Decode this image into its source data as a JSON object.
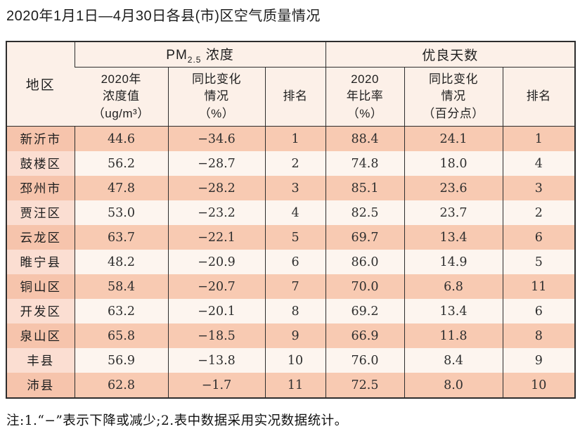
{
  "page": {
    "title": "2020年1月1日—4月30日各县(市)区空气质量情况",
    "footnote": "注:1.“−”表示下降或减少;2.表中数据采用实况数据统计。"
  },
  "colors": {
    "row_odd": "#f8cab2",
    "row_odd_region": "#f6c4ac",
    "row_even": "#fdf5ef",
    "row_even_region": "#fbded2",
    "header_bg": "#fcf0e8",
    "border": "#2d2d2d"
  },
  "table": {
    "header": {
      "region": "地区",
      "pm_group_prefix": "PM",
      "pm_group_sub": "2.5",
      "pm_group_suffix": " 浓度",
      "good_days_group": "优良天数",
      "col_pm_value": "2020年\n浓度值\n（ug/m³）",
      "col_pm_change": "同比变化\n情况\n（%）",
      "col_pm_rank": "排名",
      "col_days_ratio": "2020\n年比率\n（%）",
      "col_days_change": "同比变化\n情况\n（百分点）",
      "col_days_rank": "排名"
    },
    "rows": [
      {
        "region": "新沂市",
        "pm_value": "44.6",
        "pm_change": "−34.6",
        "pm_rank": "1",
        "ratio": "88.4",
        "ratio_change": "24.1",
        "ratio_rank": "1"
      },
      {
        "region": "鼓楼区",
        "pm_value": "56.2",
        "pm_change": "−28.7",
        "pm_rank": "2",
        "ratio": "74.8",
        "ratio_change": "18.0",
        "ratio_rank": "4"
      },
      {
        "region": "邳州市",
        "pm_value": "47.8",
        "pm_change": "−28.2",
        "pm_rank": "3",
        "ratio": "85.1",
        "ratio_change": "23.6",
        "ratio_rank": "3"
      },
      {
        "region": "贾汪区",
        "pm_value": "53.0",
        "pm_change": "−23.2",
        "pm_rank": "4",
        "ratio": "82.5",
        "ratio_change": "23.7",
        "ratio_rank": "2"
      },
      {
        "region": "云龙区",
        "pm_value": "63.7",
        "pm_change": "−22.1",
        "pm_rank": "5",
        "ratio": "69.7",
        "ratio_change": "13.4",
        "ratio_rank": "6"
      },
      {
        "region": "睢宁县",
        "pm_value": "48.2",
        "pm_change": "−20.9",
        "pm_rank": "6",
        "ratio": "86.0",
        "ratio_change": "14.9",
        "ratio_rank": "5"
      },
      {
        "region": "铜山区",
        "pm_value": "58.4",
        "pm_change": "−20.7",
        "pm_rank": "7",
        "ratio": "70.0",
        "ratio_change": "6.8",
        "ratio_rank": "11"
      },
      {
        "region": "开发区",
        "pm_value": "63.2",
        "pm_change": "−20.1",
        "pm_rank": "8",
        "ratio": "69.2",
        "ratio_change": "13.4",
        "ratio_rank": "6"
      },
      {
        "region": "泉山区",
        "pm_value": "65.8",
        "pm_change": "−18.5",
        "pm_rank": "9",
        "ratio": "66.9",
        "ratio_change": "11.8",
        "ratio_rank": "8"
      },
      {
        "region": "丰县",
        "pm_value": "56.9",
        "pm_change": "−13.8",
        "pm_rank": "10",
        "ratio": "76.0",
        "ratio_change": "8.4",
        "ratio_rank": "9"
      },
      {
        "region": "沛县",
        "pm_value": "62.8",
        "pm_change": "−1.7",
        "pm_rank": "11",
        "ratio": "72.5",
        "ratio_change": "8.0",
        "ratio_rank": "10"
      }
    ]
  }
}
